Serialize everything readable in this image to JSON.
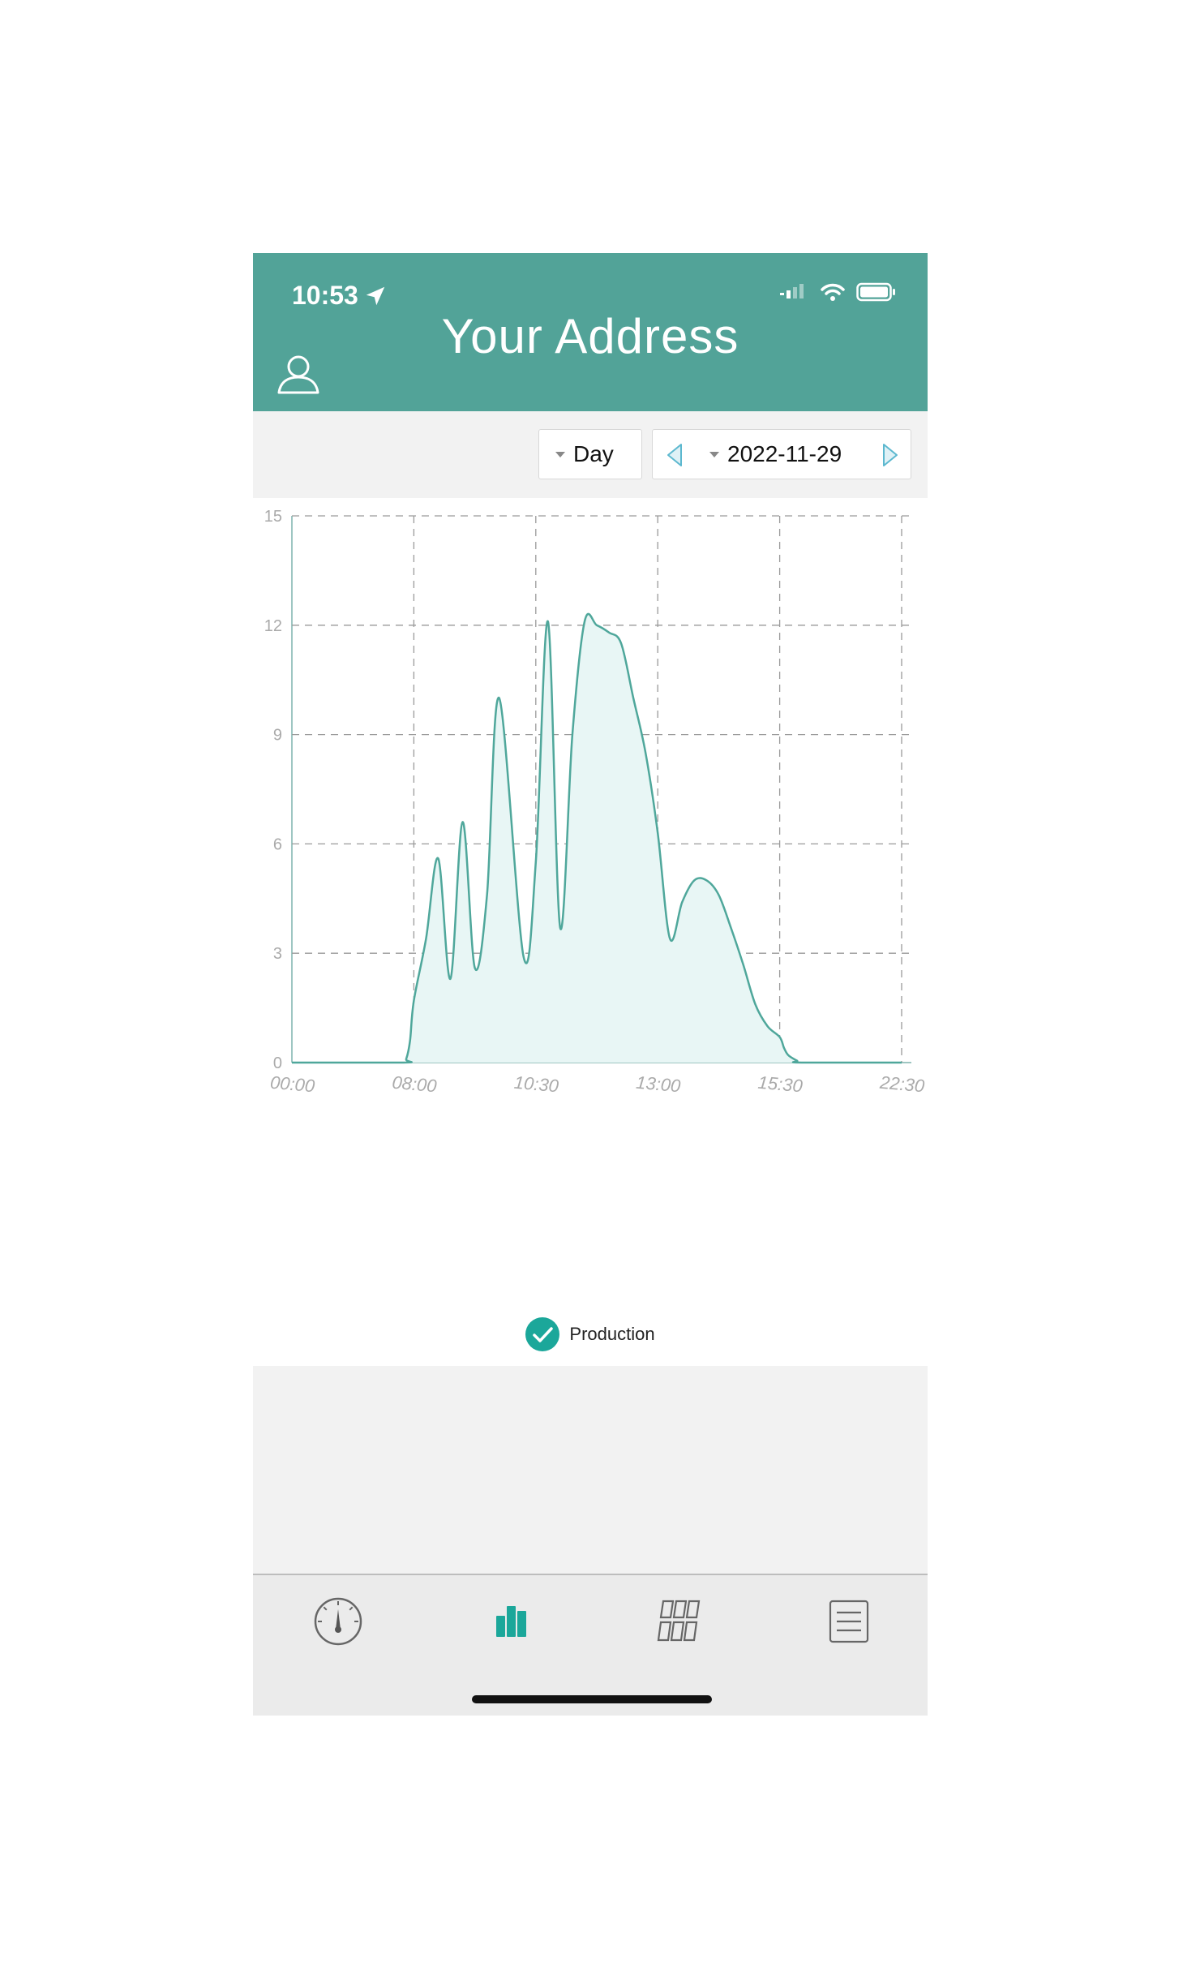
{
  "status_bar": {
    "time": "10:53",
    "location_icon": "location-arrow-icon",
    "signal_icon": "signal-icon",
    "wifi_icon": "wifi-icon",
    "battery_icon": "battery-icon"
  },
  "header": {
    "title": "Your Address",
    "user_icon": "user-icon"
  },
  "toolbar": {
    "period_label": "Day",
    "date_label": "2022-11-29",
    "prev_icon": "triangle-left-icon",
    "next_icon": "triangle-right-icon"
  },
  "colors": {
    "header": "#52a398",
    "line": "#4fa79b",
    "fill": "#e8f6f5",
    "toolbar_bg": "#f2f2f2",
    "accent": "#1ba79a",
    "grid": "#9a9a9a"
  },
  "chart_data": {
    "type": "area",
    "title": "",
    "xlabel": "",
    "ylabel": "",
    "xlim": [
      "00:00",
      "22:30"
    ],
    "ylim": [
      0,
      15
    ],
    "yticks": [
      0,
      3,
      6,
      9,
      12,
      15
    ],
    "xticks": [
      "00:00",
      "08:00",
      "10:30",
      "13:00",
      "15:30",
      "22:30"
    ],
    "grid": true,
    "legend": "bottom-center",
    "series": [
      {
        "name": "Production",
        "points": [
          [
            "00:00",
            0
          ],
          [
            "07:15",
            0
          ],
          [
            "07:30",
            0.1
          ],
          [
            "07:45",
            0.6
          ],
          [
            "08:00",
            1.7
          ],
          [
            "08:15",
            3.4
          ],
          [
            "08:30",
            5.6
          ],
          [
            "08:45",
            2.3
          ],
          [
            "09:00",
            6.6
          ],
          [
            "09:15",
            2.6
          ],
          [
            "09:30",
            4.6
          ],
          [
            "09:45",
            10.0
          ],
          [
            "10:15",
            2.9
          ],
          [
            "10:30",
            5.5
          ],
          [
            "10:45",
            12.1
          ],
          [
            "11:00",
            3.7
          ],
          [
            "11:15",
            9.0
          ],
          [
            "11:30",
            12.1
          ],
          [
            "11:45",
            12.0
          ],
          [
            "12:00",
            11.8
          ],
          [
            "12:15",
            11.5
          ],
          [
            "12:30",
            10.0
          ],
          [
            "12:45",
            8.5
          ],
          [
            "13:00",
            6.3
          ],
          [
            "13:15",
            3.4
          ],
          [
            "13:30",
            4.4
          ],
          [
            "13:45",
            5.0
          ],
          [
            "14:00",
            5.0
          ],
          [
            "14:15",
            4.6
          ],
          [
            "14:30",
            3.7
          ],
          [
            "14:45",
            2.7
          ],
          [
            "15:00",
            1.6
          ],
          [
            "15:15",
            1.0
          ],
          [
            "15:30",
            0.7
          ],
          [
            "15:45",
            0.4
          ],
          [
            "16:00",
            0.2
          ],
          [
            "16:30",
            0.05
          ],
          [
            "16:45",
            0
          ],
          [
            "22:30",
            0
          ]
        ]
      }
    ]
  },
  "legend": {
    "label": "Production",
    "icon": "check-circle-icon"
  },
  "tabs": [
    {
      "name": "gauge-icon"
    },
    {
      "name": "bar-chart-icon"
    },
    {
      "name": "panels-grid-icon"
    },
    {
      "name": "list-icon"
    }
  ]
}
